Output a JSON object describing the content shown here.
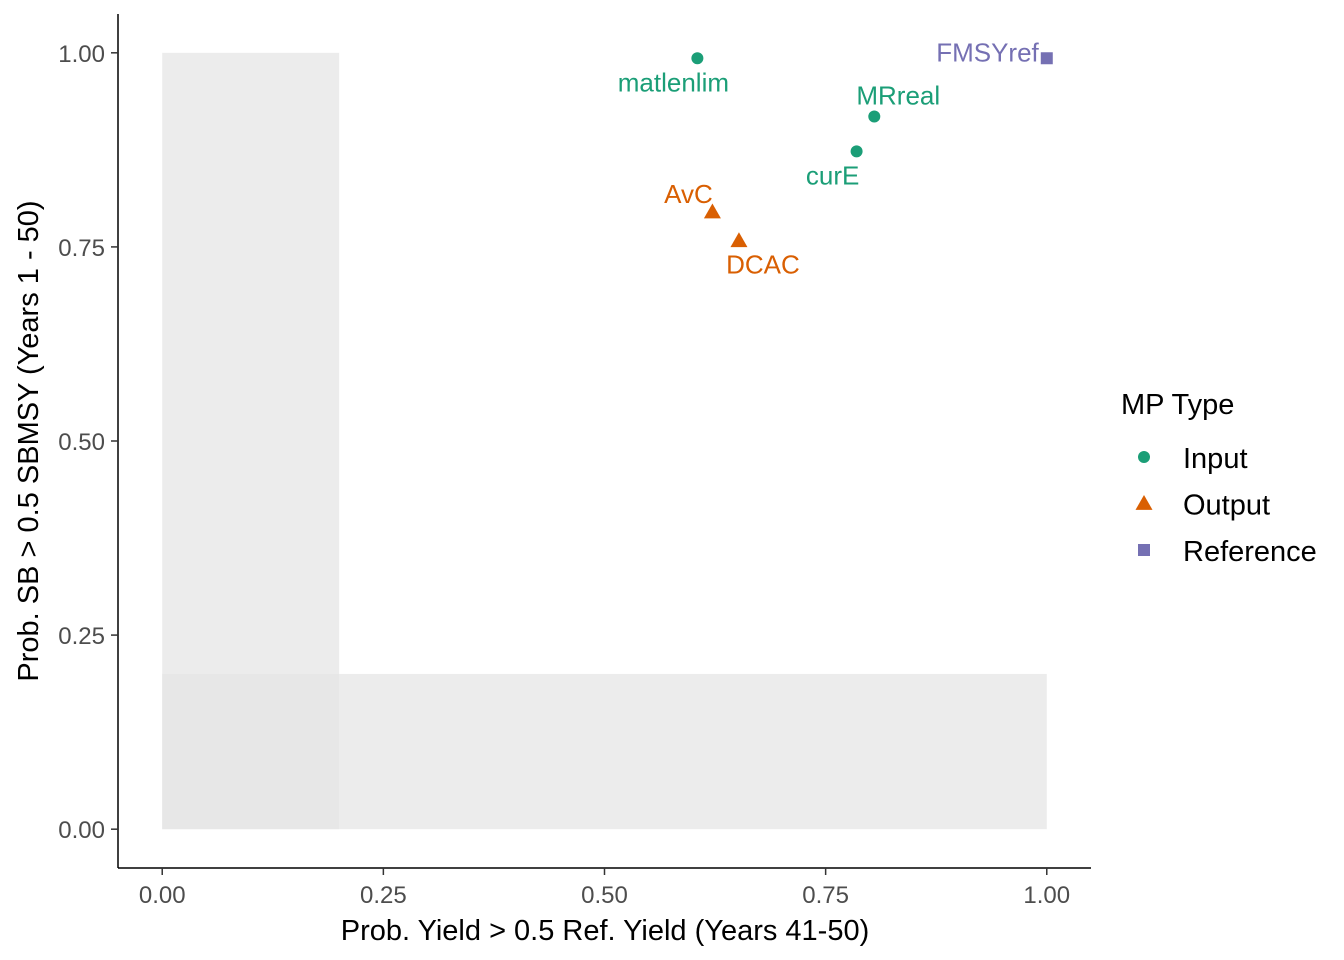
{
  "chart_data": {
    "type": "scatter",
    "title": "",
    "xlabel": "Prob. Yield > 0.5 Ref. Yield (Years 41-50)",
    "ylabel": "Prob. SB > 0.5 SBMSY (Years 1 - 50)",
    "xlim": [
      -0.05,
      1.05
    ],
    "ylim": [
      -0.05,
      1.05
    ],
    "x_ticks": [
      0,
      0.25,
      0.5,
      0.75,
      1
    ],
    "x_tick_labels": [
      "0.00",
      "0.25",
      "0.50",
      "0.75",
      "1.00"
    ],
    "y_ticks": [
      0,
      0.25,
      0.5,
      0.75,
      1
    ],
    "y_tick_labels": [
      "0.00",
      "0.25",
      "0.50",
      "0.75",
      "1.00"
    ],
    "grid": false,
    "shaded_regions": [
      {
        "x": [
          0,
          0.2
        ],
        "y": [
          0,
          1
        ],
        "color": "#e6e6e6"
      },
      {
        "x": [
          0,
          1
        ],
        "y": [
          0,
          0.2
        ],
        "color": "#e6e6e6"
      }
    ],
    "legend": {
      "title": "MP Type",
      "placement": "right",
      "entries": [
        {
          "label": "Input",
          "shape": "circle",
          "color": "#1b9e77"
        },
        {
          "label": "Output",
          "shape": "triangle",
          "color": "#d95f02"
        },
        {
          "label": "Reference",
          "shape": "square",
          "color": "#7570b3"
        }
      ]
    },
    "points": [
      {
        "label": "matlenlim",
        "x": 0.605,
        "y": 0.993,
        "type": "Input",
        "label_pos": "below-left"
      },
      {
        "label": "MRreal",
        "x": 0.805,
        "y": 0.918,
        "type": "Input",
        "label_pos": "above"
      },
      {
        "label": "curE",
        "x": 0.785,
        "y": 0.873,
        "type": "Input",
        "label_pos": "below-left"
      },
      {
        "label": "AvC",
        "x": 0.622,
        "y": 0.795,
        "type": "Output",
        "label_pos": "above-left"
      },
      {
        "label": "DCAC",
        "x": 0.652,
        "y": 0.758,
        "type": "Output",
        "label_pos": "below"
      },
      {
        "label": "FMSYref",
        "x": 1.0,
        "y": 0.993,
        "type": "Reference",
        "label_pos": "left"
      }
    ]
  }
}
